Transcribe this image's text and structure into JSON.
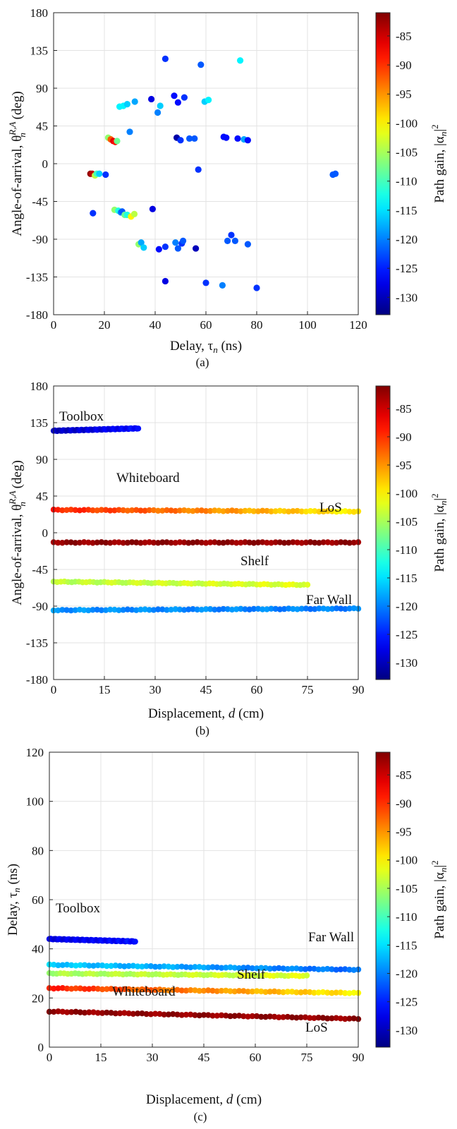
{
  "figure": {
    "captions": [
      "(a)",
      "(b)",
      "(c)"
    ]
  },
  "colorbar": {
    "label": "Path gain, |α",
    "label_sub": "n",
    "label_sup": "2",
    "label_close": "|",
    "ticks": [
      -85,
      -90,
      -95,
      -100,
      -105,
      -110,
      -115,
      -120,
      -125,
      -130
    ],
    "range": [
      -133,
      -81
    ]
  },
  "chart_data": [
    {
      "type": "scatter",
      "caption": "(a)",
      "xlabel": "Delay, τ",
      "xlabel_sub": "n",
      "xlabel_unit": " (ns)",
      "ylabel": "Angle-of-arrival, θ",
      "ylabel_sub": "n",
      "ylabel_sup": "R,A",
      "ylabel_unit": " (deg)",
      "xlim": [
        0,
        120
      ],
      "ylim": [
        -180,
        180
      ],
      "xticks": [
        0,
        20,
        40,
        60,
        80,
        100,
        120
      ],
      "yticks": [
        180,
        135,
        90,
        45,
        0,
        -45,
        -90,
        -135,
        -180
      ],
      "grid": true,
      "colorbar": "Path gain, |α_n|^2",
      "points": [
        {
          "x": 14.5,
          "y": -12,
          "gain": -82
        },
        {
          "x": 15.2,
          "y": -12,
          "gain": -84
        },
        {
          "x": 16.3,
          "y": -14,
          "gain": -104
        },
        {
          "x": 17.0,
          "y": -12,
          "gain": -110
        },
        {
          "x": 18.0,
          "y": -12,
          "gain": -116
        },
        {
          "x": 20.5,
          "y": -13,
          "gain": -124
        },
        {
          "x": 15.5,
          "y": -59,
          "gain": -124
        },
        {
          "x": 21.5,
          "y": 31,
          "gain": -106
        },
        {
          "x": 22.5,
          "y": 29,
          "gain": -92
        },
        {
          "x": 23.5,
          "y": 27,
          "gain": -86
        },
        {
          "x": 24.3,
          "y": 26,
          "gain": -88
        },
        {
          "x": 25.0,
          "y": 27,
          "gain": -108
        },
        {
          "x": 24.0,
          "y": -55,
          "gain": -106
        },
        {
          "x": 25.5,
          "y": -56,
          "gain": -112
        },
        {
          "x": 26.5,
          "y": -58,
          "gain": -120
        },
        {
          "x": 27.0,
          "y": -57,
          "gain": -122
        },
        {
          "x": 28.0,
          "y": -61,
          "gain": -108
        },
        {
          "x": 29.0,
          "y": -61,
          "gain": -112
        },
        {
          "x": 30.5,
          "y": -63,
          "gain": -100
        },
        {
          "x": 31.8,
          "y": -60,
          "gain": -104
        },
        {
          "x": 26.0,
          "y": 68,
          "gain": -114
        },
        {
          "x": 27.5,
          "y": 69,
          "gain": -114
        },
        {
          "x": 29.0,
          "y": 71,
          "gain": -116
        },
        {
          "x": 32.0,
          "y": 74,
          "gain": -118
        },
        {
          "x": 30.0,
          "y": 38,
          "gain": -120
        },
        {
          "x": 33.5,
          "y": -96,
          "gain": -106
        },
        {
          "x": 34.5,
          "y": -94,
          "gain": -118
        },
        {
          "x": 35.5,
          "y": -100,
          "gain": -116
        },
        {
          "x": 38.5,
          "y": 77,
          "gain": -128
        },
        {
          "x": 39.0,
          "y": -54,
          "gain": -128
        },
        {
          "x": 41.0,
          "y": 61,
          "gain": -120
        },
        {
          "x": 42.0,
          "y": 69,
          "gain": -116
        },
        {
          "x": 41.5,
          "y": -102,
          "gain": -126
        },
        {
          "x": 44.0,
          "y": 125,
          "gain": -124
        },
        {
          "x": 44.0,
          "y": -99,
          "gain": -124
        },
        {
          "x": 44.0,
          "y": -140,
          "gain": -128
        },
        {
          "x": 47.5,
          "y": 81,
          "gain": -126
        },
        {
          "x": 48.5,
          "y": 31,
          "gain": -131
        },
        {
          "x": 49.0,
          "y": 73,
          "gain": -126
        },
        {
          "x": 48.0,
          "y": -94,
          "gain": -120
        },
        {
          "x": 49.0,
          "y": -101,
          "gain": -122
        },
        {
          "x": 50.0,
          "y": 28,
          "gain": -124
        },
        {
          "x": 50.5,
          "y": -95,
          "gain": -124
        },
        {
          "x": 51.0,
          "y": -92,
          "gain": -122
        },
        {
          "x": 51.5,
          "y": 79,
          "gain": -124
        },
        {
          "x": 53.5,
          "y": 30,
          "gain": -122
        },
        {
          "x": 55.5,
          "y": 30,
          "gain": -122
        },
        {
          "x": 56.0,
          "y": -101,
          "gain": -130
        },
        {
          "x": 57.0,
          "y": -7,
          "gain": -124
        },
        {
          "x": 58.0,
          "y": 118,
          "gain": -122
        },
        {
          "x": 59.5,
          "y": 74,
          "gain": -116
        },
        {
          "x": 60.0,
          "y": -142,
          "gain": -124
        },
        {
          "x": 61.0,
          "y": 76,
          "gain": -114
        },
        {
          "x": 67.0,
          "y": 32,
          "gain": -126
        },
        {
          "x": 68.0,
          "y": 31,
          "gain": -126
        },
        {
          "x": 66.5,
          "y": -145,
          "gain": -120
        },
        {
          "x": 68.5,
          "y": -92,
          "gain": -122
        },
        {
          "x": 70.0,
          "y": -85,
          "gain": -124
        },
        {
          "x": 71.5,
          "y": -92,
          "gain": -122
        },
        {
          "x": 72.5,
          "y": 30,
          "gain": -126
        },
        {
          "x": 73.5,
          "y": 123,
          "gain": -114
        },
        {
          "x": 75.0,
          "y": 29,
          "gain": -118
        },
        {
          "x": 76.5,
          "y": 28,
          "gain": -126
        },
        {
          "x": 76.5,
          "y": -96,
          "gain": -122
        },
        {
          "x": 80.0,
          "y": -148,
          "gain": -124
        },
        {
          "x": 110.0,
          "y": -13,
          "gain": -122
        },
        {
          "x": 111.0,
          "y": -12,
          "gain": -122
        }
      ]
    },
    {
      "type": "line",
      "caption": "(b)",
      "xlabel": "Displacement, ",
      "xlabel_var": "d",
      "xlabel_unit": " (cm)",
      "ylabel": "Angle-of-arrival, θ",
      "ylabel_sub": "n",
      "ylabel_sup": "R,A",
      "ylabel_unit": " (deg)",
      "xlim": [
        0,
        90
      ],
      "ylim": [
        -180,
        180
      ],
      "xticks": [
        0,
        15,
        30,
        45,
        60,
        75,
        90
      ],
      "yticks": [
        180,
        135,
        90,
        45,
        0,
        -45,
        -90,
        -135,
        -180
      ],
      "grid": true,
      "colorbar": "Path gain, |α_n|^2",
      "series": [
        {
          "name": "Toolbox",
          "x_start": 0,
          "x_end": 25,
          "y_start": 125,
          "y_end": 128,
          "gain_start": -130,
          "gain_end": -126
        },
        {
          "name": "Whiteboard",
          "x_start": 0,
          "x_end": 90,
          "y_start": 28,
          "y_end": 26,
          "gain_start": -89,
          "gain_end": -100
        },
        {
          "name": "LoS",
          "x_start": 0,
          "x_end": 90,
          "y_start": -12,
          "y_end": -12,
          "gain_start": -82,
          "gain_end": -82
        },
        {
          "name": "Shelf",
          "x_start": 0,
          "x_end": 75,
          "y_start": -60,
          "y_end": -64,
          "gain_start": -104,
          "gain_end": -102
        },
        {
          "name": "Far Wall",
          "x_start": 0,
          "x_end": 90,
          "y_start": -95,
          "y_end": -93,
          "gain_start": -119,
          "gain_end": -120
        }
      ]
    },
    {
      "type": "line",
      "caption": "(c)",
      "xlabel": "Displacement, ",
      "xlabel_var": "d",
      "xlabel_unit": " (cm)",
      "ylabel": "Delay, τ",
      "ylabel_sub": "n",
      "ylabel_unit": " (ns)",
      "xlim": [
        0,
        90
      ],
      "ylim": [
        0,
        120
      ],
      "xticks": [
        0,
        15,
        30,
        45,
        60,
        75,
        90
      ],
      "yticks": [
        120,
        100,
        80,
        60,
        40,
        20,
        0
      ],
      "grid": true,
      "colorbar": "Path gain, |α_n|^2",
      "series": [
        {
          "name": "Toolbox",
          "x_start": 0,
          "x_end": 25,
          "y_start": 44,
          "y_end": 43,
          "gain_start": -128,
          "gain_end": -126
        },
        {
          "name": "Far Wall",
          "x_start": 0,
          "x_end": 90,
          "y_start": 33.5,
          "y_end": 31.5,
          "gain_start": -116,
          "gain_end": -121
        },
        {
          "name": "Shelf",
          "x_start": 0,
          "x_end": 75,
          "y_start": 30,
          "y_end": 29,
          "gain_start": -105,
          "gain_end": -102
        },
        {
          "name": "Whiteboard",
          "x_start": 0,
          "x_end": 90,
          "y_start": 24,
          "y_end": 22,
          "gain_start": -89,
          "gain_end": -100
        },
        {
          "name": "LoS",
          "x_start": 0,
          "x_end": 90,
          "y_start": 14.5,
          "y_end": 11.5,
          "gain_start": -82,
          "gain_end": -82
        }
      ]
    }
  ]
}
